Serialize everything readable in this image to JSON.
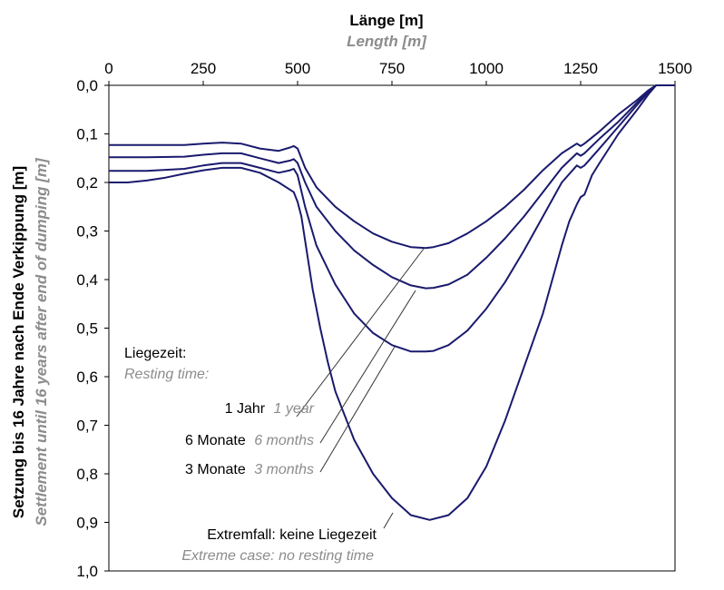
{
  "chart_data": {
    "type": "line",
    "title": "Länge [m]",
    "title_en": "Length [m]",
    "xlabel": "Länge [m]",
    "xlabel_en": "Length [m]",
    "ylabel": "Setzung bis 16 Jahre nach Ende Verkippung [m]",
    "ylabel_en": "Settlement until 16 years after end of dumping [m]",
    "xlim": [
      0,
      1500
    ],
    "ylim": [
      0,
      1.0
    ],
    "y_inverted": true,
    "x_axis_position": "top",
    "grid": false,
    "x_ticks": [
      "0",
      "250",
      "500",
      "750",
      "1000",
      "1250",
      "1500"
    ],
    "y_ticks": [
      "0,0",
      "0,1",
      "0,2",
      "0,3",
      "0,4",
      "0,5",
      "0,6",
      "0,7",
      "0,8",
      "0,9",
      "1,0"
    ],
    "line_color": "#1a1a6e",
    "legend": {
      "title": "Liegezeit:",
      "title_en": "Resting time:"
    },
    "series": [
      {
        "name": "1 Jahr",
        "name_en": "1 year",
        "x": [
          0,
          100,
          200,
          250,
          300,
          350,
          400,
          450,
          480,
          490,
          500,
          520,
          550,
          600,
          650,
          700,
          750,
          800,
          840,
          860,
          900,
          950,
          1000,
          1050,
          1100,
          1150,
          1200,
          1240,
          1250,
          1260,
          1300,
          1350,
          1400,
          1430,
          1450,
          1500
        ],
        "y": [
          0.123,
          0.123,
          0.123,
          0.12,
          0.118,
          0.12,
          0.13,
          0.135,
          0.128,
          0.125,
          0.13,
          0.17,
          0.21,
          0.25,
          0.28,
          0.305,
          0.322,
          0.333,
          0.335,
          0.333,
          0.325,
          0.305,
          0.28,
          0.25,
          0.215,
          0.175,
          0.14,
          0.12,
          0.125,
          0.12,
          0.095,
          0.06,
          0.03,
          0.01,
          0.0,
          0.0
        ]
      },
      {
        "name": "6 Monate",
        "name_en": "6 months",
        "x": [
          0,
          100,
          200,
          250,
          300,
          350,
          400,
          450,
          480,
          490,
          500,
          520,
          550,
          600,
          650,
          700,
          750,
          800,
          840,
          860,
          900,
          950,
          1000,
          1050,
          1100,
          1150,
          1200,
          1240,
          1250,
          1260,
          1300,
          1350,
          1400,
          1430,
          1450,
          1500
        ],
        "y": [
          0.148,
          0.148,
          0.147,
          0.143,
          0.14,
          0.14,
          0.15,
          0.16,
          0.155,
          0.152,
          0.16,
          0.2,
          0.25,
          0.3,
          0.34,
          0.37,
          0.395,
          0.412,
          0.418,
          0.417,
          0.41,
          0.39,
          0.355,
          0.315,
          0.27,
          0.22,
          0.17,
          0.14,
          0.145,
          0.14,
          0.11,
          0.075,
          0.035,
          0.012,
          0.0,
          0.0
        ]
      },
      {
        "name": "3 Monate",
        "name_en": "3 months",
        "x": [
          0,
          100,
          200,
          250,
          300,
          350,
          400,
          450,
          480,
          490,
          500,
          520,
          550,
          600,
          650,
          700,
          750,
          800,
          840,
          860,
          900,
          950,
          1000,
          1050,
          1100,
          1150,
          1200,
          1240,
          1250,
          1260,
          1300,
          1350,
          1400,
          1430,
          1450,
          1500
        ],
        "y": [
          0.176,
          0.176,
          0.172,
          0.165,
          0.16,
          0.16,
          0.17,
          0.18,
          0.175,
          0.172,
          0.185,
          0.25,
          0.33,
          0.41,
          0.47,
          0.51,
          0.535,
          0.548,
          0.548,
          0.547,
          0.535,
          0.505,
          0.46,
          0.405,
          0.34,
          0.27,
          0.2,
          0.165,
          0.17,
          0.165,
          0.13,
          0.085,
          0.04,
          0.014,
          0.0,
          0.0
        ]
      },
      {
        "name": "Extremfall: keine Liegezeit",
        "name_en": "Extreme case: no resting time",
        "x": [
          0,
          50,
          100,
          150,
          200,
          250,
          300,
          350,
          400,
          450,
          490,
          500,
          510,
          520,
          540,
          560,
          580,
          600,
          650,
          700,
          750,
          800,
          850,
          900,
          950,
          1000,
          1050,
          1100,
          1150,
          1200,
          1220,
          1240,
          1250,
          1260,
          1280,
          1300,
          1350,
          1400,
          1430,
          1450,
          1500
        ],
        "y": [
          0.2,
          0.2,
          0.196,
          0.19,
          0.182,
          0.175,
          0.17,
          0.17,
          0.18,
          0.2,
          0.22,
          0.24,
          0.27,
          0.32,
          0.42,
          0.5,
          0.57,
          0.63,
          0.73,
          0.8,
          0.85,
          0.885,
          0.895,
          0.885,
          0.85,
          0.785,
          0.69,
          0.58,
          0.47,
          0.33,
          0.28,
          0.245,
          0.23,
          0.225,
          0.185,
          0.16,
          0.1,
          0.05,
          0.018,
          0.0,
          0.0
        ]
      }
    ]
  }
}
